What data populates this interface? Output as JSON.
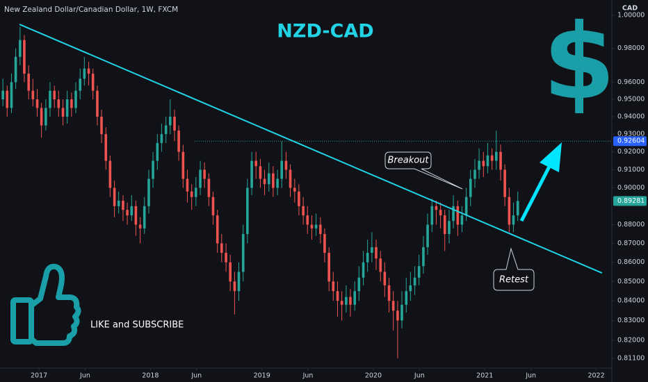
{
  "chart_data": {
    "type": "candlestick",
    "symbol_description": "New Zealand Dollar/Canadian Dollar, 1W, FXCM",
    "title": "NZD-CAD",
    "currency": "CAD",
    "logo": "$",
    "overlay_text": "LIKE and SUBSCRIBE",
    "annotations": [
      "Breakout",
      "Retest"
    ],
    "log_scale": true,
    "grid": false,
    "up_color": "#26a69a",
    "down_color": "#ef5350",
    "xlim": [
      2016.65,
      2022.14
    ],
    "ylim": [
      0.8062,
      1.0094
    ],
    "xticks": [
      {
        "value": 2017,
        "label": "2017"
      },
      {
        "value": 2017.414,
        "label": "Jun"
      },
      {
        "value": 2018,
        "label": "2018"
      },
      {
        "value": 2018.414,
        "label": "Jun"
      },
      {
        "value": 2019,
        "label": "2019"
      },
      {
        "value": 2019.414,
        "label": "Jun"
      },
      {
        "value": 2020,
        "label": "2020"
      },
      {
        "value": 2020.414,
        "label": "Jun"
      },
      {
        "value": 2021,
        "label": "2021"
      },
      {
        "value": 2021.414,
        "label": "Jun"
      },
      {
        "value": 2022,
        "label": "2022"
      }
    ],
    "yticks": [
      {
        "value": 1.0,
        "label": "1.00000"
      },
      {
        "value": 0.98,
        "label": "0.98000"
      },
      {
        "value": 0.96,
        "label": "0.96000"
      },
      {
        "value": 0.95,
        "label": "0.95000"
      },
      {
        "value": 0.94,
        "label": "0.94000"
      },
      {
        "value": 0.93,
        "label": "0.93000"
      },
      {
        "value": 0.92,
        "label": "0.92000"
      },
      {
        "value": 0.91,
        "label": "0.91000"
      },
      {
        "value": 0.9,
        "label": "0.90000"
      },
      {
        "value": 0.88,
        "label": "0.88000"
      },
      {
        "value": 0.87,
        "label": "0.87000"
      },
      {
        "value": 0.86,
        "label": "0.86000"
      },
      {
        "value": 0.85,
        "label": "0.85000"
      },
      {
        "value": 0.84,
        "label": "0.84000"
      },
      {
        "value": 0.83,
        "label": "0.83000"
      },
      {
        "value": 0.82,
        "label": "0.82000"
      },
      {
        "value": 0.811,
        "label": "0.81100"
      }
    ],
    "x": [
      2016.676,
      2016.714,
      2016.753,
      2016.791,
      2016.83,
      2016.868,
      2016.907,
      2016.945,
      2016.984,
      2017.022,
      2017.061,
      2017.099,
      2017.138,
      2017.176,
      2017.215,
      2017.253,
      2017.292,
      2017.33,
      2017.369,
      2017.407,
      2017.446,
      2017.484,
      2017.523,
      2017.561,
      2017.6,
      2017.638,
      2017.677,
      2017.715,
      2017.754,
      2017.792,
      2017.831,
      2017.869,
      2017.908,
      2017.946,
      2017.985,
      2018.023,
      2018.062,
      2018.1,
      2018.139,
      2018.177,
      2018.216,
      2018.254,
      2018.293,
      2018.331,
      2018.37,
      2018.408,
      2018.447,
      2018.485,
      2018.524,
      2018.562,
      2018.601,
      2018.639,
      2018.678,
      2018.716,
      2018.755,
      2018.793,
      2018.832,
      2018.87,
      2018.909,
      2018.947,
      2018.986,
      2019.024,
      2019.063,
      2019.101,
      2019.14,
      2019.178,
      2019.217,
      2019.255,
      2019.294,
      2019.332,
      2019.371,
      2019.409,
      2019.448,
      2019.486,
      2019.525,
      2019.563,
      2019.602,
      2019.64,
      2019.679,
      2019.717,
      2019.756,
      2019.794,
      2019.833,
      2019.871,
      2019.91,
      2019.948,
      2019.987,
      2020.025,
      2020.064,
      2020.102,
      2020.141,
      2020.179,
      2020.218,
      2020.256,
      2020.295,
      2020.333,
      2020.372,
      2020.41,
      2020.449,
      2020.487,
      2020.526,
      2020.564,
      2020.603,
      2020.641,
      2020.68,
      2020.718,
      2020.757,
      2020.795,
      2020.834,
      2020.872,
      2020.911,
      2020.949,
      2020.988,
      2021.026,
      2021.065,
      2021.103,
      2021.142,
      2021.18,
      2021.219,
      2021.257,
      2021.296
    ],
    "ohlc": [
      [
        0.95,
        0.962,
        0.946,
        0.955
      ],
      [
        0.955,
        0.958,
        0.94,
        0.945
      ],
      [
        0.945,
        0.965,
        0.942,
        0.96
      ],
      [
        0.96,
        0.98,
        0.956,
        0.975
      ],
      [
        0.975,
        0.993,
        0.97,
        0.985
      ],
      [
        0.985,
        0.988,
        0.96,
        0.965
      ],
      [
        0.965,
        0.97,
        0.95,
        0.955
      ],
      [
        0.955,
        0.962,
        0.946,
        0.95
      ],
      [
        0.95,
        0.956,
        0.94,
        0.945
      ],
      [
        0.945,
        0.948,
        0.928,
        0.935
      ],
      [
        0.935,
        0.95,
        0.932,
        0.945
      ],
      [
        0.945,
        0.96,
        0.94,
        0.955
      ],
      [
        0.955,
        0.958,
        0.945,
        0.95
      ],
      [
        0.95,
        0.955,
        0.94,
        0.945
      ],
      [
        0.945,
        0.95,
        0.935,
        0.94
      ],
      [
        0.94,
        0.955,
        0.936,
        0.95
      ],
      [
        0.95,
        0.954,
        0.94,
        0.945
      ],
      [
        0.945,
        0.96,
        0.942,
        0.955
      ],
      [
        0.955,
        0.968,
        0.95,
        0.962
      ],
      [
        0.962,
        0.975,
        0.958,
        0.968
      ],
      [
        0.968,
        0.972,
        0.958,
        0.965
      ],
      [
        0.965,
        0.968,
        0.95,
        0.955
      ],
      [
        0.955,
        0.958,
        0.935,
        0.94
      ],
      [
        0.94,
        0.944,
        0.925,
        0.93
      ],
      [
        0.93,
        0.934,
        0.91,
        0.915
      ],
      [
        0.915,
        0.918,
        0.895,
        0.9
      ],
      [
        0.9,
        0.904,
        0.884,
        0.89
      ],
      [
        0.89,
        0.898,
        0.886,
        0.893
      ],
      [
        0.893,
        0.896,
        0.882,
        0.888
      ],
      [
        0.888,
        0.892,
        0.88,
        0.885
      ],
      [
        0.885,
        0.896,
        0.882,
        0.89
      ],
      [
        0.89,
        0.893,
        0.874,
        0.88
      ],
      [
        0.88,
        0.884,
        0.87,
        0.878
      ],
      [
        0.878,
        0.895,
        0.875,
        0.89
      ],
      [
        0.89,
        0.91,
        0.886,
        0.905
      ],
      [
        0.905,
        0.92,
        0.9,
        0.915
      ],
      [
        0.915,
        0.93,
        0.91,
        0.925
      ],
      [
        0.925,
        0.936,
        0.92,
        0.93
      ],
      [
        0.93,
        0.94,
        0.925,
        0.935
      ],
      [
        0.935,
        0.95,
        0.93,
        0.94
      ],
      [
        0.94,
        0.944,
        0.926,
        0.932
      ],
      [
        0.932,
        0.935,
        0.915,
        0.92
      ],
      [
        0.92,
        0.924,
        0.9,
        0.905
      ],
      [
        0.905,
        0.91,
        0.892,
        0.898
      ],
      [
        0.898,
        0.902,
        0.888,
        0.895
      ],
      [
        0.895,
        0.906,
        0.89,
        0.9
      ],
      [
        0.9,
        0.915,
        0.896,
        0.91
      ],
      [
        0.91,
        0.914,
        0.9,
        0.905
      ],
      [
        0.905,
        0.908,
        0.89,
        0.895
      ],
      [
        0.895,
        0.898,
        0.88,
        0.885
      ],
      [
        0.885,
        0.888,
        0.865,
        0.87
      ],
      [
        0.87,
        0.875,
        0.86,
        0.865
      ],
      [
        0.865,
        0.87,
        0.855,
        0.86
      ],
      [
        0.86,
        0.864,
        0.845,
        0.85
      ],
      [
        0.85,
        0.855,
        0.833,
        0.845
      ],
      [
        0.845,
        0.86,
        0.84,
        0.855
      ],
      [
        0.855,
        0.88,
        0.85,
        0.875
      ],
      [
        0.875,
        0.905,
        0.87,
        0.9
      ],
      [
        0.9,
        0.92,
        0.896,
        0.915
      ],
      [
        0.915,
        0.92,
        0.905,
        0.912
      ],
      [
        0.912,
        0.916,
        0.9,
        0.905
      ],
      [
        0.905,
        0.91,
        0.896,
        0.902
      ],
      [
        0.902,
        0.914,
        0.898,
        0.908
      ],
      [
        0.908,
        0.912,
        0.895,
        0.9
      ],
      [
        0.9,
        0.91,
        0.896,
        0.905
      ],
      [
        0.905,
        0.926,
        0.9,
        0.915
      ],
      [
        0.915,
        0.92,
        0.905,
        0.91
      ],
      [
        0.91,
        0.913,
        0.895,
        0.9
      ],
      [
        0.9,
        0.905,
        0.892,
        0.898
      ],
      [
        0.898,
        0.902,
        0.885,
        0.89
      ],
      [
        0.89,
        0.895,
        0.88,
        0.885
      ],
      [
        0.885,
        0.89,
        0.875,
        0.88
      ],
      [
        0.88,
        0.885,
        0.872,
        0.878
      ],
      [
        0.878,
        0.886,
        0.874,
        0.88
      ],
      [
        0.88,
        0.884,
        0.87,
        0.875
      ],
      [
        0.875,
        0.878,
        0.86,
        0.865
      ],
      [
        0.865,
        0.868,
        0.845,
        0.85
      ],
      [
        0.85,
        0.855,
        0.84,
        0.845
      ],
      [
        0.845,
        0.85,
        0.832,
        0.84
      ],
      [
        0.84,
        0.845,
        0.83,
        0.838
      ],
      [
        0.838,
        0.848,
        0.834,
        0.842
      ],
      [
        0.842,
        0.846,
        0.832,
        0.838
      ],
      [
        0.838,
        0.85,
        0.835,
        0.845
      ],
      [
        0.845,
        0.858,
        0.84,
        0.852
      ],
      [
        0.852,
        0.866,
        0.848,
        0.86
      ],
      [
        0.86,
        0.872,
        0.855,
        0.865
      ],
      [
        0.865,
        0.876,
        0.86,
        0.868
      ],
      [
        0.868,
        0.872,
        0.856,
        0.862
      ],
      [
        0.862,
        0.866,
        0.85,
        0.855
      ],
      [
        0.855,
        0.86,
        0.842,
        0.848
      ],
      [
        0.848,
        0.852,
        0.834,
        0.84
      ],
      [
        0.84,
        0.845,
        0.825,
        0.835
      ],
      [
        0.835,
        0.84,
        0.811,
        0.83
      ],
      [
        0.83,
        0.845,
        0.826,
        0.838
      ],
      [
        0.838,
        0.852,
        0.834,
        0.845
      ],
      [
        0.845,
        0.855,
        0.84,
        0.848
      ],
      [
        0.848,
        0.858,
        0.843,
        0.852
      ],
      [
        0.852,
        0.864,
        0.848,
        0.858
      ],
      [
        0.858,
        0.874,
        0.854,
        0.868
      ],
      [
        0.868,
        0.886,
        0.864,
        0.88
      ],
      [
        0.88,
        0.894,
        0.876,
        0.89
      ],
      [
        0.89,
        0.893,
        0.88,
        0.888
      ],
      [
        0.888,
        0.892,
        0.878,
        0.885
      ],
      [
        0.885,
        0.888,
        0.866,
        0.875
      ],
      [
        0.875,
        0.888,
        0.87,
        0.882
      ],
      [
        0.882,
        0.896,
        0.878,
        0.89
      ],
      [
        0.89,
        0.893,
        0.874,
        0.88
      ],
      [
        0.88,
        0.89,
        0.876,
        0.885
      ],
      [
        0.885,
        0.9,
        0.882,
        0.895
      ],
      [
        0.895,
        0.91,
        0.89,
        0.905
      ],
      [
        0.905,
        0.916,
        0.9,
        0.91
      ],
      [
        0.91,
        0.922,
        0.905,
        0.915
      ],
      [
        0.915,
        0.92,
        0.906,
        0.912
      ],
      [
        0.912,
        0.925,
        0.908,
        0.918
      ],
      [
        0.918,
        0.922,
        0.91,
        0.915
      ],
      [
        0.915,
        0.932,
        0.91,
        0.92
      ],
      [
        0.92,
        0.924,
        0.904,
        0.91
      ],
      [
        0.91,
        0.913,
        0.89,
        0.895
      ],
      [
        0.895,
        0.9,
        0.876,
        0.88
      ],
      [
        0.88,
        0.892,
        0.876,
        0.885
      ],
      [
        0.885,
        0.898,
        0.882,
        0.8928
      ]
    ],
    "trendline": {
      "x": [
        2016.825,
        2022.052
      ],
      "y": [
        0.9945,
        0.8544
      ],
      "color": "#22d3e6"
    },
    "level_line": {
      "x": [
        2018.397,
        2022.14
      ],
      "y": 0.92604,
      "color": "#26a69a"
    },
    "price_labels": [
      {
        "value": 0.92604,
        "color": "#2962ff"
      },
      {
        "value": 0.89281,
        "color": "#26a69a"
      }
    ]
  }
}
